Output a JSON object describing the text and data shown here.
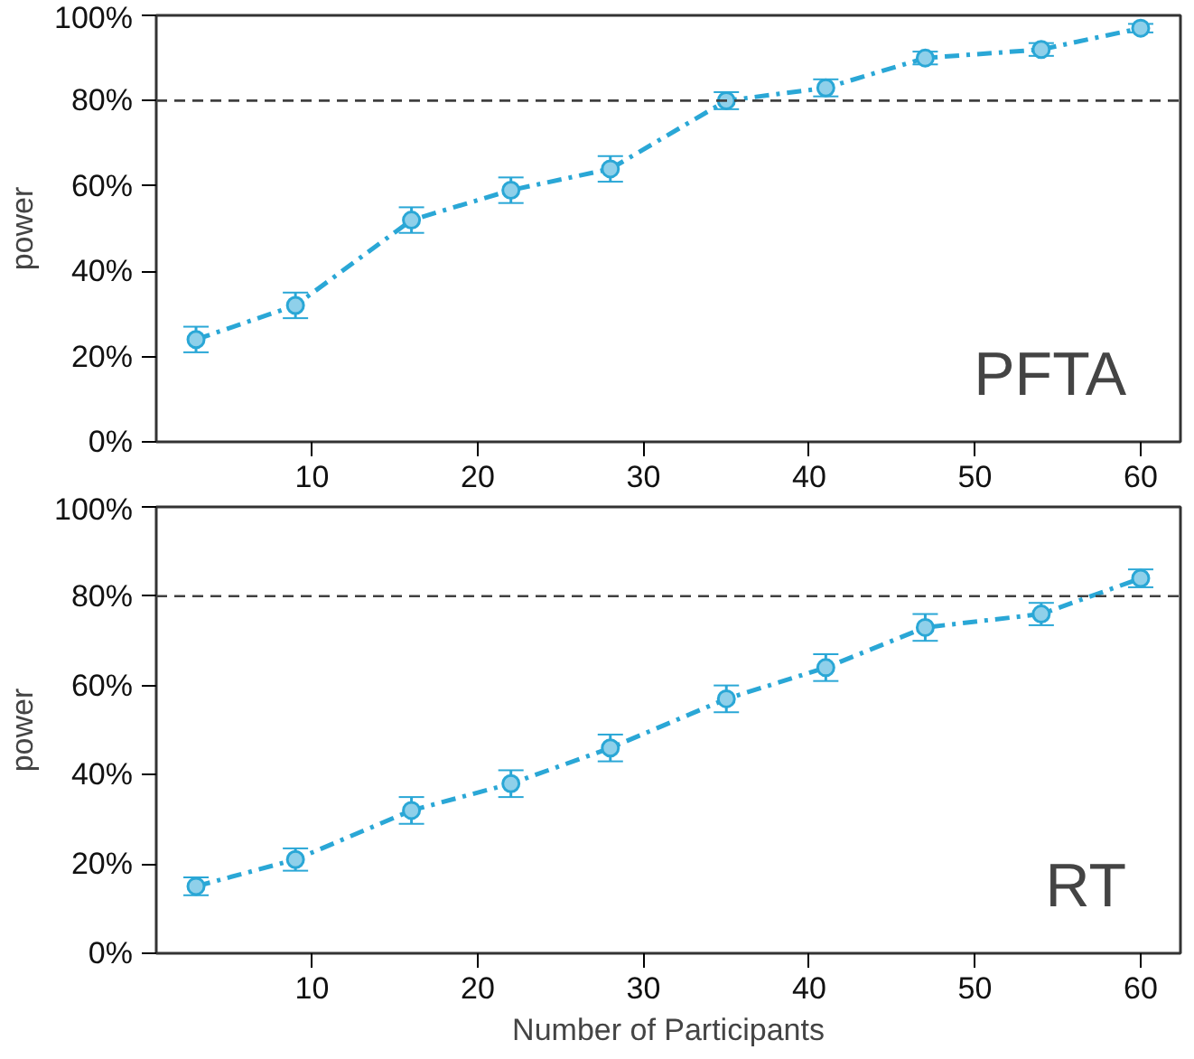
{
  "chart_data": [
    {
      "type": "line",
      "ylabel": "power",
      "annotations": [
        "PFTA"
      ],
      "x": [
        3,
        9,
        16,
        22,
        28,
        35,
        41,
        47,
        54,
        60
      ],
      "series": [
        {
          "color": "#2aa7d6",
          "values": [
            24,
            32,
            52,
            59,
            64,
            80,
            83,
            90,
            92,
            97
          ],
          "errors": [
            3,
            3,
            3,
            3,
            3,
            2,
            2,
            1.5,
            1.5,
            1
          ]
        }
      ],
      "xlim": [
        0.6,
        62.4
      ],
      "ylim": [
        0,
        100
      ],
      "xticks": [
        10,
        20,
        30,
        40,
        50,
        60
      ],
      "yticks": [
        {
          "value": 0,
          "label": "0%"
        },
        {
          "value": 20,
          "label": "20%"
        },
        {
          "value": 40,
          "label": "40%"
        },
        {
          "value": 60,
          "label": "60%"
        },
        {
          "value": 80,
          "label": "80%"
        },
        {
          "value": 100,
          "label": "100%"
        }
      ],
      "ref_lines": [
        {
          "axis": "y",
          "value": 80,
          "color": "#404040",
          "line_style": "dashed"
        }
      ],
      "grid": false,
      "marker": "circle",
      "line_style": "dashdot"
    },
    {
      "type": "line",
      "xlabel": "Number of Participants",
      "ylabel": "power",
      "annotations": [
        "RT"
      ],
      "x": [
        3,
        9,
        16,
        22,
        28,
        35,
        41,
        47,
        54,
        60
      ],
      "series": [
        {
          "color": "#2aa7d6",
          "values": [
            15,
            21,
            32,
            38,
            46,
            57,
            64,
            73,
            76,
            84
          ],
          "errors": [
            2,
            2.5,
            3,
            3,
            3,
            3,
            3,
            3,
            2.5,
            2
          ]
        }
      ],
      "xlim": [
        0.6,
        62.4
      ],
      "ylim": [
        0,
        100
      ],
      "xticks": [
        10,
        20,
        30,
        40,
        50,
        60
      ],
      "yticks": [
        {
          "value": 0,
          "label": "0%"
        },
        {
          "value": 20,
          "label": "20%"
        },
        {
          "value": 40,
          "label": "40%"
        },
        {
          "value": 60,
          "label": "60%"
        },
        {
          "value": 80,
          "label": "80%"
        },
        {
          "value": 100,
          "label": "100%"
        }
      ],
      "ref_lines": [
        {
          "axis": "y",
          "value": 80,
          "color": "#404040",
          "line_style": "dashed"
        }
      ],
      "grid": false,
      "marker": "circle",
      "line_style": "dashdot"
    }
  ]
}
